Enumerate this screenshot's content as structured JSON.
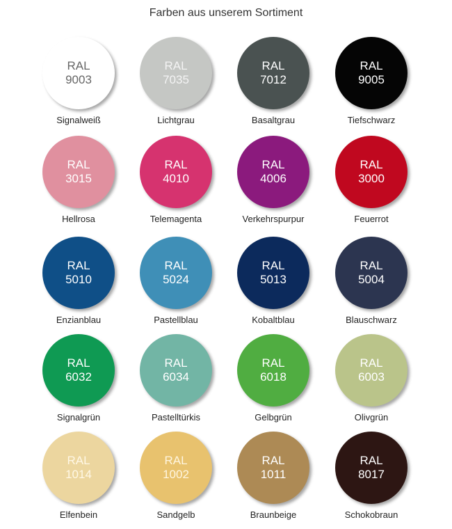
{
  "title": "Farben aus unserem Sortiment",
  "swatches": [
    {
      "ral": "RAL",
      "code": "9003",
      "name": "Signalweiß",
      "color": "#ffffff",
      "text": "#666666"
    },
    {
      "ral": "RAL",
      "code": "7035",
      "name": "Lichtgrau",
      "color": "#c5c7c4",
      "text": "#f4f4f4"
    },
    {
      "ral": "RAL",
      "code": "7012",
      "name": "Basaltgrau",
      "color": "#4a5251",
      "text": "#ffffff"
    },
    {
      "ral": "RAL",
      "code": "9005",
      "name": "Tiefschwarz",
      "color": "#050505",
      "text": "#ffffff"
    },
    {
      "ral": "RAL",
      "code": "3015",
      "name": "Hellrosa",
      "color": "#e0909f",
      "text": "#ffffff"
    },
    {
      "ral": "RAL",
      "code": "4010",
      "name": "Telemagenta",
      "color": "#d6336f",
      "text": "#ffffff"
    },
    {
      "ral": "RAL",
      "code": "4006",
      "name": "Verkehrspurpur",
      "color": "#8b1a7d",
      "text": "#ffffff"
    },
    {
      "ral": "RAL",
      "code": "3000",
      "name": "Feuerrot",
      "color": "#c0081f",
      "text": "#ffffff"
    },
    {
      "ral": "RAL",
      "code": "5010",
      "name": "Enzianblau",
      "color": "#0f4f87",
      "text": "#ffffff"
    },
    {
      "ral": "RAL",
      "code": "5024",
      "name": "Pastellblau",
      "color": "#3f8fb7",
      "text": "#ffffff"
    },
    {
      "ral": "RAL",
      "code": "5013",
      "name": "Kobaltblau",
      "color": "#0c2a5c",
      "text": "#ffffff"
    },
    {
      "ral": "RAL",
      "code": "5004",
      "name": "Blauschwarz",
      "color": "#2c3550",
      "text": "#ffffff"
    },
    {
      "ral": "RAL",
      "code": "6032",
      "name": "Signalgrün",
      "color": "#0f9a53",
      "text": "#ffffff"
    },
    {
      "ral": "RAL",
      "code": "6034",
      "name": "Pastelltürkis",
      "color": "#72b5a5",
      "text": "#ffffff"
    },
    {
      "ral": "RAL",
      "code": "6018",
      "name": "Gelbgrün",
      "color": "#50ad41",
      "text": "#ffffff"
    },
    {
      "ral": "RAL",
      "code": "6003",
      "name": "Olivgrün",
      "color": "#bac48a",
      "text": "#ffffff"
    },
    {
      "ral": "RAL",
      "code": "1014",
      "name": "Elfenbein",
      "color": "#ecd69f",
      "text": "#fff8e6"
    },
    {
      "ral": "RAL",
      "code": "1002",
      "name": "Sandgelb",
      "color": "#e8c26e",
      "text": "#fff6e0"
    },
    {
      "ral": "RAL",
      "code": "1011",
      "name": "Braunbeige",
      "color": "#ad8a55",
      "text": "#ffffff"
    },
    {
      "ral": "RAL",
      "code": "8017",
      "name": "Schokobraun",
      "color": "#2d1613",
      "text": "#ffffff"
    }
  ]
}
